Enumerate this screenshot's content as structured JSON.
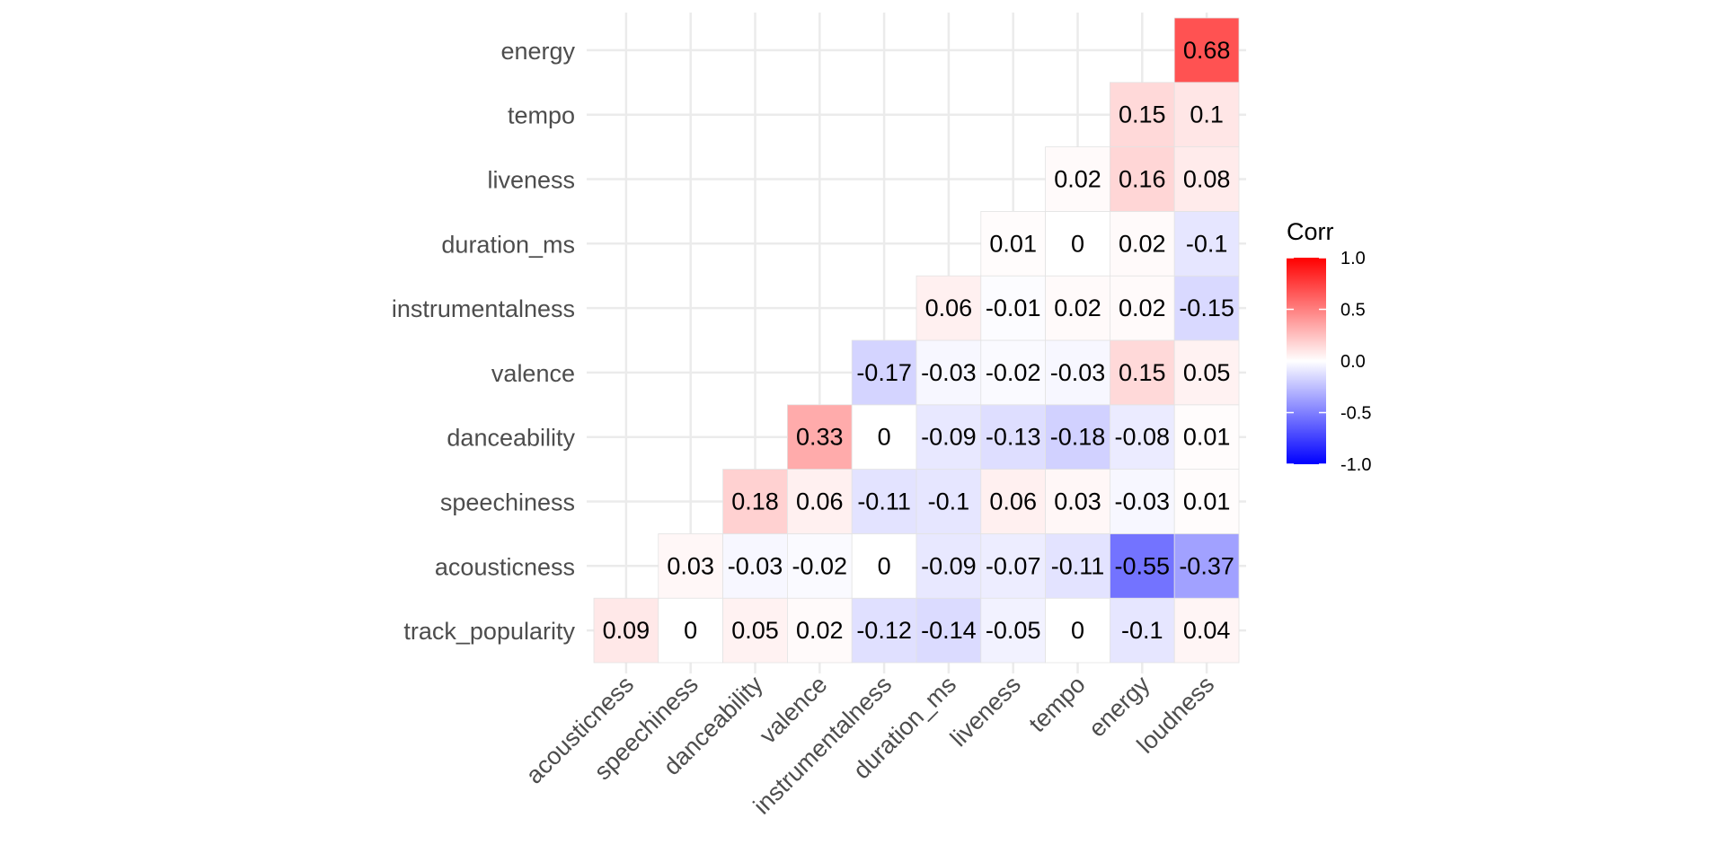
{
  "chart_data": {
    "type": "heatmap",
    "title": "",
    "x_categories": [
      "acousticness",
      "speechiness",
      "danceability",
      "valence",
      "instrumentalness",
      "duration_ms",
      "liveness",
      "tempo",
      "energy",
      "loudness"
    ],
    "y_categories": [
      "track_popularity",
      "acousticness",
      "speechiness",
      "danceability",
      "valence",
      "instrumentalness",
      "duration_ms",
      "liveness",
      "tempo",
      "energy"
    ],
    "values": [
      [
        0.09,
        0,
        0.05,
        0.02,
        -0.12,
        -0.14,
        -0.05,
        0,
        -0.1,
        0.04
      ],
      [
        null,
        0.03,
        -0.03,
        -0.02,
        0,
        -0.09,
        -0.07,
        -0.11,
        -0.55,
        -0.37
      ],
      [
        null,
        null,
        0.18,
        0.06,
        -0.11,
        -0.1,
        0.06,
        0.03,
        -0.03,
        0.01
      ],
      [
        null,
        null,
        null,
        0.33,
        0,
        -0.09,
        -0.13,
        -0.18,
        -0.08,
        0.01
      ],
      [
        null,
        null,
        null,
        null,
        -0.17,
        -0.03,
        -0.02,
        -0.03,
        0.15,
        0.05
      ],
      [
        null,
        null,
        null,
        null,
        null,
        0.06,
        -0.01,
        0.02,
        0.02,
        -0.15
      ],
      [
        null,
        null,
        null,
        null,
        null,
        null,
        0.01,
        0,
        0.02,
        -0.1
      ],
      [
        null,
        null,
        null,
        null,
        null,
        null,
        null,
        0.02,
        0.16,
        0.08
      ],
      [
        null,
        null,
        null,
        null,
        null,
        null,
        null,
        null,
        0.15,
        0.1
      ],
      [
        null,
        null,
        null,
        null,
        null,
        null,
        null,
        null,
        null,
        0.68
      ]
    ],
    "legend": {
      "title": "Corr",
      "placement": "right",
      "range": [
        -1,
        1
      ],
      "ticks": [
        "1.0",
        "0.5",
        "0.0",
        "-0.5",
        "-1.0"
      ],
      "tick_values": [
        1,
        0.5,
        0,
        -0.5,
        -1
      ]
    },
    "colors": {
      "low": "#0000ff",
      "mid": "#ffffff",
      "high": "#ff0000"
    },
    "grid": true
  }
}
